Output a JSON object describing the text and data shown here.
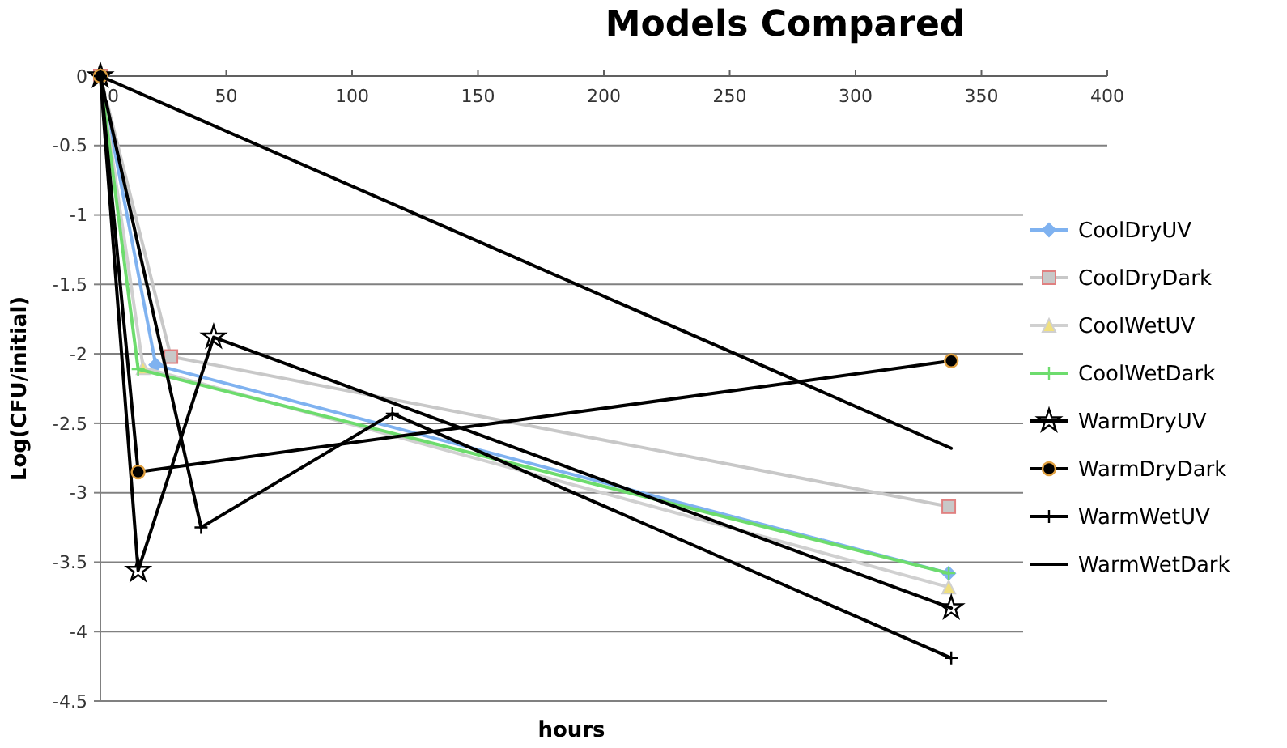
{
  "chart_data": {
    "type": "line",
    "title": "Models Compared",
    "xlabel": "hours",
    "ylabel": "Log(CFU/initial)",
    "xlim": [
      0,
      400
    ],
    "xticks": [
      0,
      50,
      100,
      150,
      200,
      250,
      300,
      350,
      400
    ],
    "ylim": [
      -4.5,
      0
    ],
    "yticks": [
      -4.5,
      -4,
      -3.5,
      -3,
      -2.5,
      -2,
      -1.5,
      -1,
      -0.5,
      0
    ],
    "grid": "y",
    "legend": "right",
    "series": [
      {
        "name": "CoolDryUV",
        "color": "#7fb2f0",
        "marker": "diamond",
        "x": [
          0,
          22,
          337
        ],
        "values": [
          0,
          -2.08,
          -3.58
        ]
      },
      {
        "name": "CoolDryDark",
        "color": "#c8c8c8",
        "marker": "square",
        "x": [
          0,
          28,
          337
        ],
        "values": [
          0,
          -2.02,
          -3.1
        ]
      },
      {
        "name": "CoolWetUV",
        "color": "#d0d0d0",
        "marker": "triangle",
        "x": [
          0,
          17,
          337
        ],
        "values": [
          0,
          -2.1,
          -3.68
        ]
      },
      {
        "name": "CoolWetDark",
        "color": "#6ddc6d",
        "marker": "cross",
        "x": [
          0,
          15,
          337
        ],
        "values": [
          0,
          -2.11,
          -3.58
        ]
      },
      {
        "name": "WarmDryUV",
        "color": "#000000",
        "marker": "star",
        "x": [
          0,
          15,
          45,
          338
        ],
        "values": [
          0,
          -3.56,
          -1.88,
          -3.83
        ]
      },
      {
        "name": "WarmDryDark",
        "color": "#000000",
        "marker": "circle",
        "x": [
          0,
          15,
          338
        ],
        "values": [
          0,
          -2.85,
          -2.05
        ]
      },
      {
        "name": "WarmWetUV",
        "color": "#000000",
        "marker": "cross",
        "x": [
          0,
          40,
          116,
          338
        ],
        "values": [
          0,
          -3.25,
          -2.43,
          -4.19
        ]
      },
      {
        "name": "WarmWetDark",
        "color": "#000000",
        "marker": "none",
        "x": [
          0,
          338
        ],
        "values": [
          0,
          -2.68
        ]
      }
    ]
  }
}
